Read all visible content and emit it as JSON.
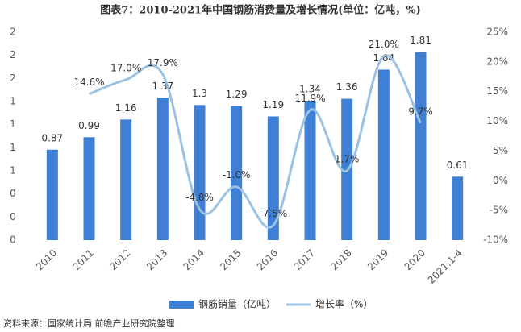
{
  "chart_data": {
    "type": "bar-line",
    "title": "图表7：2010-2021年中国钢筋消费量及增长情况(单位：亿吨，%)",
    "source": "资料来源：国家统计局 前瞻产业研究院整理",
    "categories": [
      "2010",
      "2011",
      "2012",
      "2013",
      "2014",
      "2015",
      "2016",
      "2017",
      "2018",
      "2019",
      "2020",
      "2021.1-4"
    ],
    "series": [
      {
        "name": "钢筋销量（亿吨）",
        "type": "bar",
        "color": "#3f7fd4",
        "values": [
          0.87,
          0.99,
          1.16,
          1.37,
          1.3,
          1.29,
          1.19,
          1.34,
          1.36,
          1.64,
          1.81,
          0.61
        ]
      },
      {
        "name": "增长率（%）",
        "type": "line",
        "axis": "y2",
        "color": "#9cc2e3",
        "values": [
          null,
          14.6,
          17.0,
          17.9,
          -4.8,
          -1.0,
          -7.5,
          11.9,
          1.7,
          21.0,
          9.7,
          null
        ],
        "value_labels": [
          null,
          "14.6%",
          "17.0%",
          "17.9%",
          "-4.8%",
          "-1.0%",
          "-7.5%",
          "11.9%",
          "1.7%",
          "21.0%",
          "9.7%",
          null
        ]
      }
    ],
    "ylim": [
      0,
      2.0
    ],
    "yticks": [
      0,
      {
        "value": 0.222,
        "label": "0"
      },
      {
        "value": 0.444,
        "label": "0"
      },
      {
        "value": 0.667,
        "label": "1"
      },
      {
        "value": 0.889,
        "label": "1"
      },
      {
        "value": 1.111,
        "label": "1"
      },
      {
        "value": 1.333,
        "label": "1"
      },
      {
        "value": 1.556,
        "label": "2"
      },
      {
        "value": 1.778,
        "label": "2"
      },
      2
    ],
    "y2lim": [
      -10,
      25
    ],
    "y2ticks": [
      {
        "value": -10,
        "label": "-10%"
      },
      {
        "value": -5,
        "label": "-5%"
      },
      {
        "value": 0,
        "label": "0%"
      },
      {
        "value": 5,
        "label": "5%"
      },
      {
        "value": 10,
        "label": "10%"
      },
      {
        "value": 15,
        "label": "15%"
      },
      {
        "value": 20,
        "label": "20%"
      },
      {
        "value": 25,
        "label": "25%"
      }
    ]
  }
}
